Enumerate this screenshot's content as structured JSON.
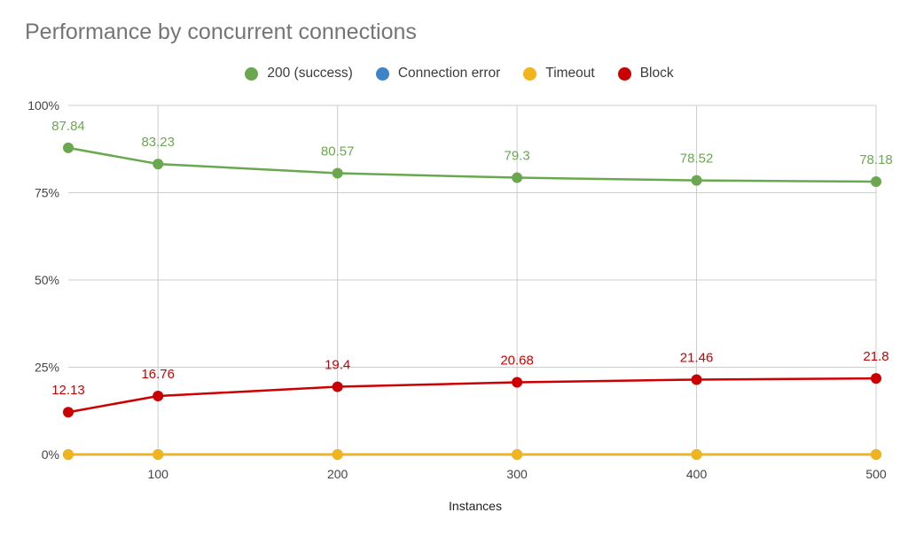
{
  "chart_data": {
    "type": "line",
    "title": "Performance by concurrent connections",
    "xlabel": "Instances",
    "ylabel": "",
    "x": [
      50,
      100,
      200,
      300,
      400,
      500
    ],
    "x_ticks": [
      {
        "value": 100,
        "label": "100"
      },
      {
        "value": 200,
        "label": "200"
      },
      {
        "value": 300,
        "label": "300"
      },
      {
        "value": 400,
        "label": "400"
      },
      {
        "value": 500,
        "label": "500"
      }
    ],
    "xlim": [
      50,
      500
    ],
    "y_ticks": [
      {
        "value": 0,
        "label": "0%"
      },
      {
        "value": 25,
        "label": "25%"
      },
      {
        "value": 50,
        "label": "50%"
      },
      {
        "value": 75,
        "label": "75%"
      },
      {
        "value": 100,
        "label": "100%"
      }
    ],
    "ylim": [
      0,
      100
    ],
    "grid": true,
    "legend_position": "top",
    "series": [
      {
        "name": "200 (success)",
        "color": "#6aa84f",
        "values": [
          87.84,
          83.23,
          80.57,
          79.3,
          78.52,
          78.18
        ],
        "labels": [
          "87.84",
          "83.23",
          "80.57",
          "79.3",
          "78.52",
          "78.18"
        ]
      },
      {
        "name": "Connection error",
        "color": "#3d85c6",
        "values": [
          0,
          0,
          0,
          0,
          0,
          0
        ],
        "labels": []
      },
      {
        "name": "Timeout",
        "color": "#f1b41c",
        "values": [
          0,
          0,
          0,
          0,
          0,
          0
        ],
        "labels": []
      },
      {
        "name": "Block",
        "color": "#cc0000",
        "values": [
          12.13,
          16.76,
          19.4,
          20.68,
          21.46,
          21.8
        ],
        "labels": [
          "12.13",
          "16.76",
          "19.4",
          "20.68",
          "21.46",
          "21.8"
        ]
      }
    ]
  }
}
